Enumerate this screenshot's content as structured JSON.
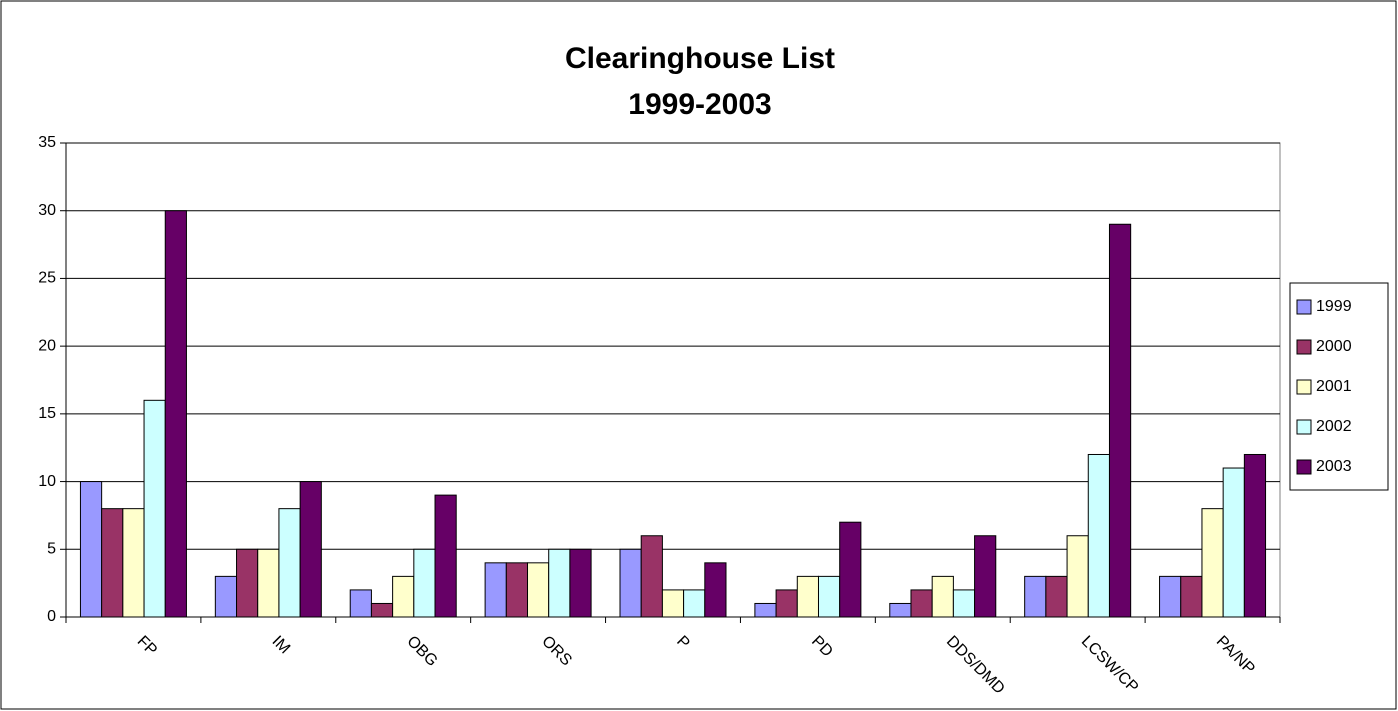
{
  "chart_data": {
    "type": "bar",
    "title": "Clearinghouse List",
    "subtitle": "1999-2003",
    "categories": [
      "FP",
      "IM",
      "OBG",
      "ORS",
      "P",
      "PD",
      "DDS/DMD",
      "LCSW/CP",
      "PA/NP"
    ],
    "series": [
      {
        "name": "1999",
        "color": "#9999ff",
        "values": [
          10,
          3,
          2,
          4,
          5,
          1,
          1,
          3,
          3
        ]
      },
      {
        "name": "2000",
        "color": "#993366",
        "values": [
          8,
          5,
          1,
          4,
          6,
          2,
          2,
          3,
          3
        ]
      },
      {
        "name": "2001",
        "color": "#ffffcc",
        "values": [
          8,
          5,
          3,
          4,
          2,
          3,
          3,
          6,
          8
        ]
      },
      {
        "name": "2002",
        "color": "#ccffff",
        "values": [
          16,
          8,
          5,
          5,
          2,
          3,
          2,
          12,
          11
        ]
      },
      {
        "name": "2003",
        "color": "#660066",
        "values": [
          30,
          10,
          9,
          5,
          4,
          7,
          6,
          29,
          12
        ]
      }
    ],
    "ylim": [
      0,
      35
    ],
    "yticks": [
      0,
      5,
      10,
      15,
      20,
      25,
      30,
      35
    ],
    "grid": true,
    "legend": "right"
  }
}
